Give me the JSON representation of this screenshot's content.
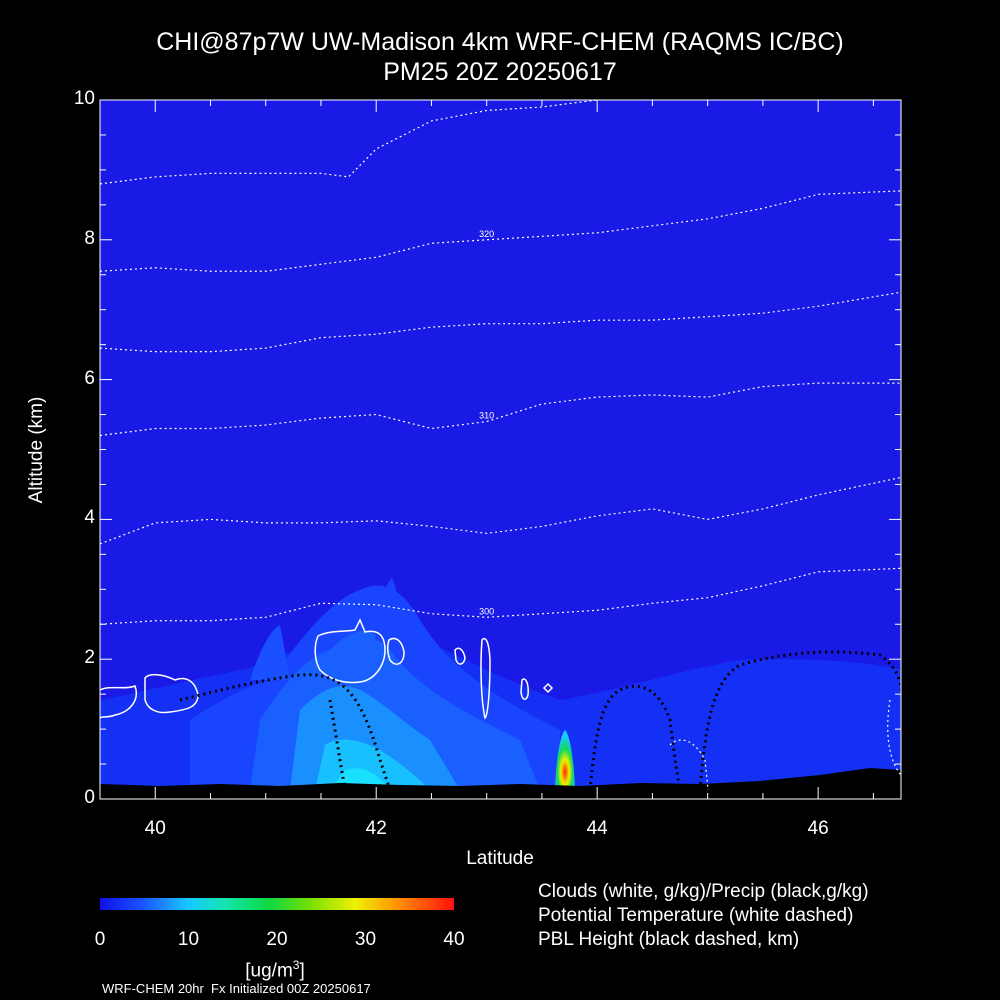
{
  "chart_data": {
    "type": "heatmap",
    "title": "CHI@87p7W UW-Madison 4km WRF-CHEM (RAQMS IC/BC)",
    "subtitle": "PM25 20Z 20250617",
    "xlabel": "Latitude",
    "ylabel": "Altitude (km)",
    "xlim": [
      39.5,
      46.75
    ],
    "ylim": [
      0,
      10
    ],
    "x_ticks": [
      "40",
      "42",
      "44",
      "46"
    ],
    "y_ticks": [
      "0",
      "2",
      "4",
      "6",
      "8",
      "10"
    ],
    "colorbar": {
      "ticks": [
        "0",
        "10",
        "20",
        "30",
        "40"
      ],
      "range": [
        0,
        40
      ],
      "unit_base": "[ug/m",
      "unit_exp": "3",
      "unit_close": "]"
    },
    "legend": [
      "Clouds (white, g/kg)/Precip (black,g/kg)",
      "Potential Temperature (white dashed)",
      "PBL Height (black dashed, km)"
    ],
    "theta_contours": [
      {
        "label": "300",
        "points": [
          [
            39.5,
            2.5
          ],
          [
            40,
            2.55
          ],
          [
            40.5,
            2.55
          ],
          [
            41,
            2.6
          ],
          [
            41.5,
            2.8
          ],
          [
            42,
            2.78
          ],
          [
            42.5,
            2.65
          ],
          [
            43,
            2.6
          ],
          [
            43.5,
            2.65
          ],
          [
            44,
            2.7
          ],
          [
            44.5,
            2.8
          ],
          [
            45,
            2.88
          ],
          [
            45.5,
            3.05
          ],
          [
            46,
            3.25
          ],
          [
            46.75,
            3.3
          ]
        ]
      },
      {
        "label": "",
        "points": [
          [
            39.5,
            3.65
          ],
          [
            40,
            3.95
          ],
          [
            40.5,
            4.0
          ],
          [
            41,
            3.95
          ],
          [
            41.5,
            3.95
          ],
          [
            42,
            3.98
          ],
          [
            42.5,
            3.9
          ],
          [
            43,
            3.8
          ],
          [
            43.5,
            3.9
          ],
          [
            44,
            4.05
          ],
          [
            44.5,
            4.15
          ],
          [
            45,
            4.0
          ],
          [
            45.5,
            4.15
          ],
          [
            46,
            4.35
          ],
          [
            46.75,
            4.6
          ]
        ]
      },
      {
        "label": "310",
        "points": [
          [
            39.5,
            5.2
          ],
          [
            40,
            5.3
          ],
          [
            40.5,
            5.3
          ],
          [
            41,
            5.35
          ],
          [
            41.5,
            5.45
          ],
          [
            42,
            5.5
          ],
          [
            42.5,
            5.3
          ],
          [
            43,
            5.4
          ],
          [
            43.5,
            5.65
          ],
          [
            44,
            5.75
          ],
          [
            44.5,
            5.78
          ],
          [
            45,
            5.75
          ],
          [
            45.5,
            5.9
          ],
          [
            46,
            5.95
          ],
          [
            46.75,
            5.95
          ]
        ]
      },
      {
        "label": "",
        "points": [
          [
            39.5,
            6.45
          ],
          [
            40,
            6.4
          ],
          [
            40.5,
            6.4
          ],
          [
            41,
            6.45
          ],
          [
            41.5,
            6.6
          ],
          [
            42,
            6.65
          ],
          [
            42.5,
            6.75
          ],
          [
            43,
            6.8
          ],
          [
            43.5,
            6.8
          ],
          [
            44,
            6.85
          ],
          [
            44.5,
            6.85
          ],
          [
            45,
            6.9
          ],
          [
            45.5,
            6.95
          ],
          [
            46,
            7.05
          ],
          [
            46.75,
            7.25
          ]
        ]
      },
      {
        "label": "320",
        "points": [
          [
            39.5,
            7.55
          ],
          [
            40,
            7.6
          ],
          [
            40.5,
            7.55
          ],
          [
            41,
            7.55
          ],
          [
            41.5,
            7.65
          ],
          [
            42,
            7.75
          ],
          [
            42.5,
            7.95
          ],
          [
            43,
            8.0
          ],
          [
            43.5,
            8.05
          ],
          [
            44,
            8.1
          ],
          [
            44.5,
            8.2
          ],
          [
            45,
            8.3
          ],
          [
            45.5,
            8.45
          ],
          [
            46,
            8.65
          ],
          [
            46.75,
            8.7
          ]
        ]
      },
      {
        "label": "",
        "points": [
          [
            39.5,
            8.8
          ],
          [
            40,
            8.9
          ],
          [
            40.5,
            8.95
          ],
          [
            41,
            8.95
          ],
          [
            41.5,
            8.95
          ],
          [
            41.75,
            8.9
          ],
          [
            42,
            9.3
          ],
          [
            42.5,
            9.7
          ],
          [
            43,
            9.85
          ],
          [
            43.5,
            9.9
          ],
          [
            44,
            10.0
          ]
        ]
      }
    ]
  }
}
